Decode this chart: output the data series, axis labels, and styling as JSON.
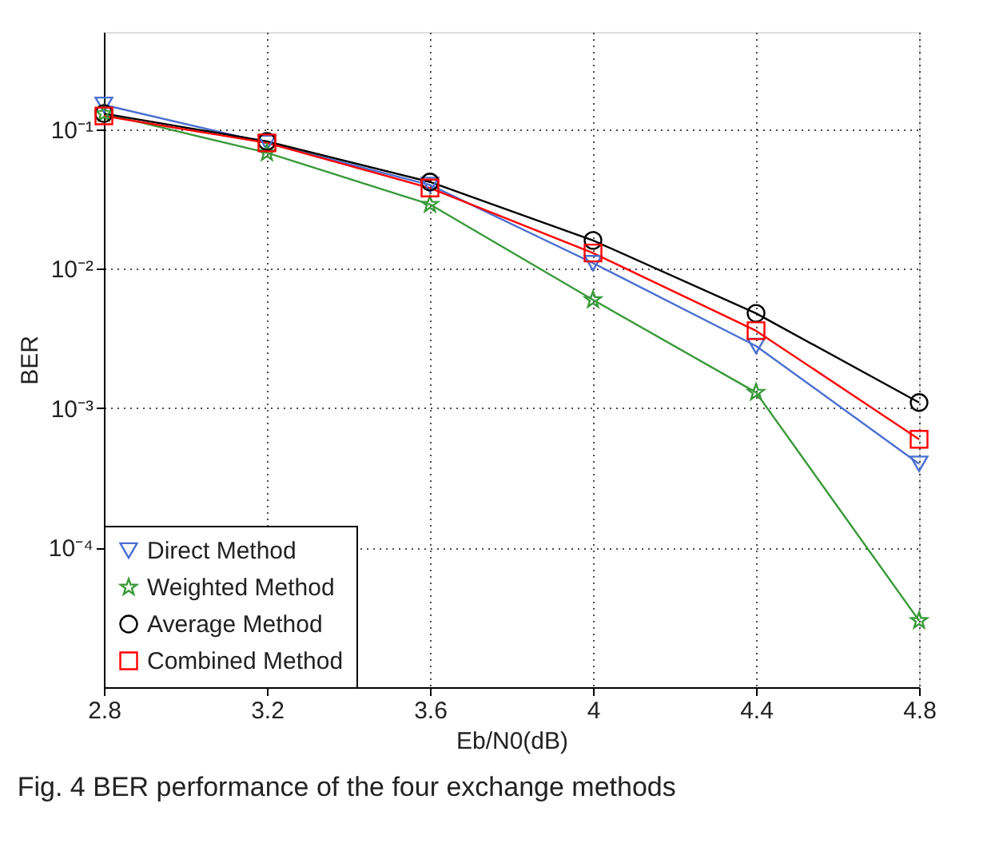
{
  "chart_data": {
    "type": "line",
    "xlabel": "Eb/N0(dB)",
    "ylabel": "BER",
    "annotations": [
      "Fig. 4 BER performance of the four exchange methods"
    ],
    "x": [
      2.8,
      3.2,
      3.6,
      4,
      4.4,
      4.8
    ],
    "xlim": [
      2.8,
      4.8
    ],
    "xticks": [
      2.8,
      3.2,
      3.6,
      4,
      4.4,
      4.8
    ],
    "ylim": [
      1e-05,
      0.5
    ],
    "yticks": [
      {
        "value": 0.0001,
        "label": "10⁻⁴"
      },
      {
        "value": 0.001,
        "label": "10⁻³"
      },
      {
        "value": 0.01,
        "label": "10⁻²"
      },
      {
        "value": 0.1,
        "label": "10⁻¹"
      }
    ],
    "log": "y",
    "grid": true,
    "legend": "bottom left",
    "line_style": "solid",
    "series": [
      {
        "name": "Direct Method",
        "color": "#4a6fd0",
        "marker": "triangle",
        "values": [
          0.15,
          0.08,
          0.04,
          0.011,
          0.0028,
          0.0004
        ]
      },
      {
        "name": "Weighted Method",
        "color": "#3a9a3a",
        "marker": "star",
        "values": [
          0.13,
          0.068,
          0.029,
          0.006,
          0.0013,
          3e-05
        ]
      },
      {
        "name": "Average Method",
        "color": "#000000",
        "marker": "circle",
        "values": [
          0.13,
          0.082,
          0.042,
          0.016,
          0.0048,
          0.0011
        ]
      },
      {
        "name": "Combined Method",
        "color": "#ff0000",
        "marker": "square",
        "values": [
          0.125,
          0.08,
          0.038,
          0.013,
          0.0036,
          0.0006
        ]
      }
    ]
  }
}
